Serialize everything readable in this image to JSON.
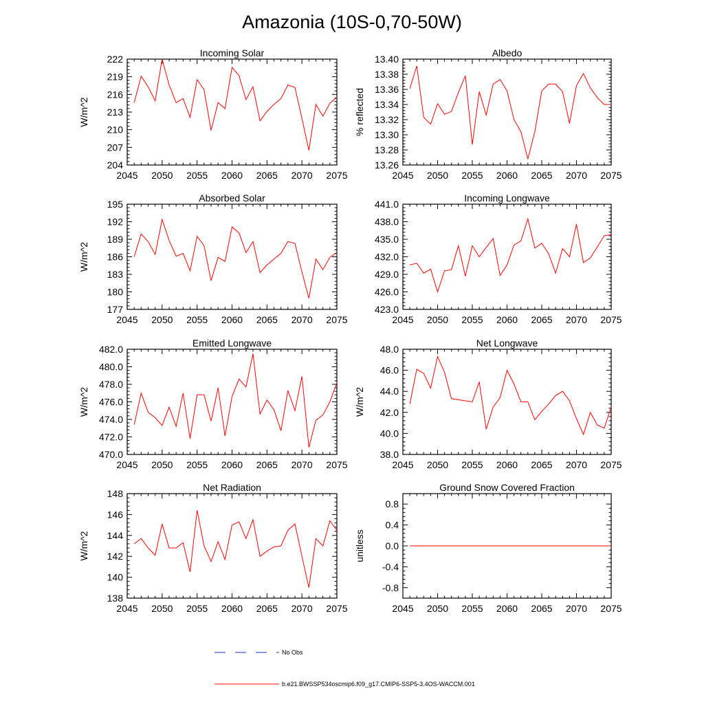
{
  "figure": {
    "title": "Amazonia (10S-0,70-50W)",
    "legend": [
      {
        "label": "No Obs",
        "color": "#1a2bd6",
        "dash": true
      },
      {
        "label": "b.e21.BWSSP534oscmip6.f09_g17.CMIP6-SSP5-3.4OS-WACCM.001",
        "color": "#ff0000",
        "dash": false
      }
    ]
  },
  "chart_data": [
    {
      "type": "line",
      "title": "Incoming Solar",
      "ylabel": "W/m^2",
      "xlabel": "",
      "xlim": [
        2045,
        2075
      ],
      "ylim": [
        204,
        222
      ],
      "xticks": [
        2045,
        2050,
        2055,
        2060,
        2065,
        2070,
        2075
      ],
      "yticks": [
        204,
        207,
        210,
        213,
        216,
        219,
        222
      ],
      "ytick_labels": [
        "204",
        "207",
        "210",
        "213",
        "216",
        "219",
        "222"
      ],
      "series": [
        {
          "color": "#ff0000",
          "x": [
            2046,
            2047,
            2048,
            2049,
            2050,
            2051,
            2052,
            2053,
            2054,
            2055,
            2056,
            2057,
            2058,
            2059,
            2060,
            2061,
            2062,
            2063,
            2064,
            2065,
            2066,
            2067,
            2068,
            2069,
            2070,
            2071,
            2072,
            2073,
            2074,
            2075
          ],
          "y": [
            214.6,
            219.1,
            217.3,
            214.9,
            222.0,
            217.6,
            214.6,
            215.3,
            212.1,
            218.5,
            216.8,
            209.9,
            214.6,
            213.6,
            220.6,
            219.2,
            215.1,
            217.3,
            211.5,
            213.1,
            214.3,
            215.3,
            217.6,
            217.2,
            211.9,
            206.5,
            214.3,
            212.3,
            214.5,
            215.5
          ]
        }
      ]
    },
    {
      "type": "line",
      "title": "Albedo",
      "ylabel": "% reflected",
      "xlabel": "",
      "xlim": [
        2045,
        2075
      ],
      "ylim": [
        13.26,
        13.4
      ],
      "xticks": [
        2045,
        2050,
        2055,
        2060,
        2065,
        2070,
        2075
      ],
      "yticks": [
        13.26,
        13.28,
        13.3,
        13.32,
        13.34,
        13.36,
        13.38,
        13.4
      ],
      "ytick_labels": [
        "13.26",
        "13.28",
        "13.30",
        "13.32",
        "13.34",
        "13.36",
        "13.38",
        "13.40"
      ],
      "series": [
        {
          "color": "#ff0000",
          "x": [
            2046,
            2047,
            2048,
            2049,
            2050,
            2051,
            2052,
            2053,
            2054,
            2055,
            2056,
            2057,
            2058,
            2059,
            2060,
            2061,
            2062,
            2063,
            2064,
            2065,
            2066,
            2067,
            2068,
            2069,
            2070,
            2071,
            2072,
            2073,
            2074,
            2075
          ],
          "y": [
            13.361,
            13.391,
            13.323,
            13.314,
            13.341,
            13.327,
            13.331,
            13.356,
            13.378,
            13.287,
            13.357,
            13.326,
            13.367,
            13.373,
            13.358,
            13.32,
            13.304,
            13.268,
            13.304,
            13.358,
            13.367,
            13.367,
            13.357,
            13.315,
            13.365,
            13.381,
            13.362,
            13.349,
            13.34,
            13.34
          ]
        }
      ]
    },
    {
      "type": "line",
      "title": "Absorbed Solar",
      "ylabel": "W/m^2",
      "xlabel": "",
      "xlim": [
        2045,
        2075
      ],
      "ylim": [
        177,
        195
      ],
      "xticks": [
        2045,
        2050,
        2055,
        2060,
        2065,
        2070,
        2075
      ],
      "yticks": [
        177,
        180,
        183,
        186,
        189,
        192,
        195
      ],
      "ytick_labels": [
        "177",
        "180",
        "183",
        "186",
        "189",
        "192",
        "195"
      ],
      "series": [
        {
          "color": "#ff0000",
          "x": [
            2046,
            2047,
            2048,
            2049,
            2050,
            2051,
            2052,
            2053,
            2054,
            2055,
            2056,
            2057,
            2058,
            2059,
            2060,
            2061,
            2062,
            2063,
            2064,
            2065,
            2066,
            2067,
            2068,
            2069,
            2070,
            2071,
            2072,
            2073,
            2074,
            2075
          ],
          "y": [
            186.0,
            189.9,
            188.6,
            186.4,
            192.4,
            188.8,
            186.1,
            186.6,
            183.6,
            189.5,
            187.9,
            181.9,
            185.9,
            185.2,
            191.1,
            190.1,
            186.7,
            188.6,
            183.3,
            184.6,
            185.6,
            186.6,
            188.6,
            188.3,
            183.4,
            178.9,
            185.6,
            183.8,
            185.9,
            186.7
          ]
        }
      ]
    },
    {
      "type": "line",
      "title": "Incoming Longwave",
      "ylabel": "",
      "xlabel": "",
      "xlim": [
        2045,
        2075
      ],
      "ylim": [
        423,
        441
      ],
      "xticks": [
        2045,
        2050,
        2055,
        2060,
        2065,
        2070,
        2075
      ],
      "yticks": [
        423,
        426,
        429,
        432,
        435,
        438,
        441
      ],
      "ytick_labels": [
        "423.0",
        "426.0",
        "429.0",
        "432.0",
        "435.0",
        "438.0",
        "441.0"
      ],
      "series": [
        {
          "color": "#ff0000",
          "x": [
            2046,
            2047,
            2048,
            2049,
            2050,
            2051,
            2052,
            2053,
            2054,
            2055,
            2056,
            2057,
            2058,
            2059,
            2060,
            2061,
            2062,
            2063,
            2064,
            2065,
            2066,
            2067,
            2068,
            2069,
            2070,
            2071,
            2072,
            2073,
            2074,
            2075
          ],
          "y": [
            430.6,
            430.9,
            429.2,
            429.9,
            426.0,
            429.6,
            429.8,
            433.9,
            428.7,
            433.9,
            432.0,
            433.6,
            435.1,
            428.8,
            430.6,
            434.0,
            434.7,
            438.5,
            433.5,
            434.3,
            432.5,
            429.2,
            433.4,
            432.0,
            437.6,
            431.0,
            431.8,
            433.7,
            435.6,
            435.8
          ]
        }
      ]
    },
    {
      "type": "line",
      "title": "Emitted Longwave",
      "ylabel": "W/m^2",
      "xlabel": "",
      "xlim": [
        2045,
        2075
      ],
      "ylim": [
        470,
        482
      ],
      "xticks": [
        2045,
        2050,
        2055,
        2060,
        2065,
        2070,
        2075
      ],
      "yticks": [
        470,
        472,
        474,
        476,
        478,
        480,
        482
      ],
      "ytick_labels": [
        "470.0",
        "472.0",
        "474.0",
        "476.0",
        "478.0",
        "480.0",
        "482.0"
      ],
      "series": [
        {
          "color": "#ff0000",
          "x": [
            2046,
            2047,
            2048,
            2049,
            2050,
            2051,
            2052,
            2053,
            2054,
            2055,
            2056,
            2057,
            2058,
            2059,
            2060,
            2061,
            2062,
            2063,
            2064,
            2065,
            2066,
            2067,
            2068,
            2069,
            2070,
            2071,
            2072,
            2073,
            2074,
            2075
          ],
          "y": [
            473.4,
            477.0,
            474.8,
            474.2,
            473.3,
            475.4,
            473.2,
            477.0,
            471.8,
            476.8,
            476.8,
            473.8,
            477.6,
            472.1,
            476.6,
            478.6,
            477.7,
            481.5,
            474.6,
            476.2,
            475.1,
            472.7,
            477.3,
            475.0,
            478.9,
            470.8,
            473.9,
            474.5,
            476.0,
            478.2
          ]
        }
      ]
    },
    {
      "type": "line",
      "title": "Net Longwave",
      "ylabel": "W/m^2",
      "xlabel": "",
      "xlim": [
        2045,
        2075
      ],
      "ylim": [
        38,
        48
      ],
      "xticks": [
        2045,
        2050,
        2055,
        2060,
        2065,
        2070,
        2075
      ],
      "yticks": [
        38,
        40,
        42,
        44,
        46,
        48
      ],
      "ytick_labels": [
        "38.0",
        "40.0",
        "42.0",
        "44.0",
        "46.0",
        "48.0"
      ],
      "series": [
        {
          "color": "#ff0000",
          "x": [
            2046,
            2047,
            2048,
            2049,
            2050,
            2051,
            2052,
            2053,
            2054,
            2055,
            2056,
            2057,
            2058,
            2059,
            2060,
            2061,
            2062,
            2063,
            2064,
            2065,
            2066,
            2067,
            2068,
            2069,
            2070,
            2071,
            2072,
            2073,
            2074,
            2075
          ],
          "y": [
            42.8,
            46.1,
            45.7,
            44.3,
            47.3,
            45.8,
            43.3,
            43.2,
            43.1,
            43.0,
            44.9,
            40.4,
            42.5,
            43.4,
            46.0,
            44.7,
            43.0,
            43.0,
            41.3,
            42.1,
            42.8,
            43.6,
            44.0,
            43.1,
            41.4,
            39.9,
            42.0,
            40.8,
            40.5,
            42.5
          ]
        }
      ]
    },
    {
      "type": "line",
      "title": "Net Radiation",
      "ylabel": "W/m^2",
      "xlabel": "",
      "xlim": [
        2045,
        2075
      ],
      "ylim": [
        138,
        148
      ],
      "xticks": [
        2045,
        2050,
        2055,
        2060,
        2065,
        2070,
        2075
      ],
      "yticks": [
        138,
        140,
        142,
        144,
        146,
        148
      ],
      "ytick_labels": [
        "138",
        "140",
        "142",
        "144",
        "146",
        "148"
      ],
      "series": [
        {
          "color": "#ff0000",
          "x": [
            2046,
            2047,
            2048,
            2049,
            2050,
            2051,
            2052,
            2053,
            2054,
            2055,
            2056,
            2057,
            2058,
            2059,
            2060,
            2061,
            2062,
            2063,
            2064,
            2065,
            2066,
            2067,
            2068,
            2069,
            2070,
            2071,
            2072,
            2073,
            2074,
            2075
          ],
          "y": [
            143.2,
            143.7,
            142.8,
            142.1,
            145.1,
            142.8,
            142.8,
            143.3,
            140.5,
            146.4,
            143.0,
            141.5,
            143.4,
            141.7,
            145.0,
            145.3,
            143.7,
            145.5,
            142.0,
            142.5,
            142.9,
            143.0,
            144.5,
            145.1,
            142.0,
            139.0,
            143.7,
            143.0,
            145.4,
            144.5
          ]
        }
      ]
    },
    {
      "type": "line",
      "title": "Ground Snow Covered Fraction",
      "ylabel": "unitless",
      "xlabel": "",
      "xlim": [
        2045,
        2075
      ],
      "ylim": [
        -1.0,
        1.0
      ],
      "xticks": [
        2045,
        2050,
        2055,
        2060,
        2065,
        2070,
        2075
      ],
      "yticks": [
        -0.8,
        -0.4,
        0.0,
        0.4,
        0.8
      ],
      "ytick_labels": [
        "-0.8",
        "-0.4",
        "0.0",
        "0.4",
        "0.8"
      ],
      "series": [
        {
          "color": "#ff0000",
          "x": [
            2046,
            2047,
            2048,
            2049,
            2050,
            2051,
            2052,
            2053,
            2054,
            2055,
            2056,
            2057,
            2058,
            2059,
            2060,
            2061,
            2062,
            2063,
            2064,
            2065,
            2066,
            2067,
            2068,
            2069,
            2070,
            2071,
            2072,
            2073,
            2074,
            2075
          ],
          "y": [
            0,
            0,
            0,
            0,
            0,
            0,
            0,
            0,
            0,
            0,
            0,
            0,
            0,
            0,
            0,
            0,
            0,
            0,
            0,
            0,
            0,
            0,
            0,
            0,
            0,
            0,
            0,
            0,
            0,
            0
          ]
        }
      ]
    }
  ]
}
